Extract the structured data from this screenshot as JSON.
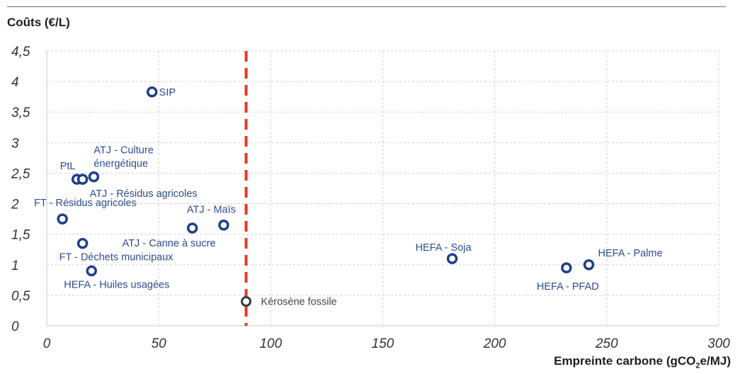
{
  "chart_data": {
    "type": "scatter",
    "ylabel": "Coûts (€/L)",
    "xlabel_prefix": "Empreinte carbone (gCO",
    "xlabel_sub": "2",
    "xlabel_suffix": "e/MJ)",
    "xlim": [
      0,
      300
    ],
    "ylim": [
      0,
      4.5
    ],
    "x_ticks": [
      "0",
      "50",
      "100",
      "150",
      "200",
      "250",
      "300"
    ],
    "x_tick_values": [
      0,
      50,
      100,
      150,
      200,
      250,
      300
    ],
    "y_ticks": [
      "0",
      "0,5",
      "1",
      "1,5",
      "2",
      "2,5",
      "3",
      "3,5",
      "4",
      "4,5"
    ],
    "y_tick_values": [
      0,
      0.5,
      1,
      1.5,
      2,
      2.5,
      3,
      3.5,
      4,
      4.5
    ],
    "grid": true,
    "points": [
      {
        "label": "SIP",
        "x": 47,
        "y": 3.83
      },
      {
        "label": "PtL",
        "x": 13.5,
        "y": 2.4
      },
      {
        "label": "",
        "x": 16,
        "y": 2.4
      },
      {
        "label": "ATJ - Culture énergétique",
        "x": 21,
        "y": 2.44
      },
      {
        "label": "ATJ - Résidus agricoles",
        "x": 16,
        "y": 2.4
      },
      {
        "label": "FT - Résidus agricoles",
        "x": 7,
        "y": 1.75
      },
      {
        "label": "ATJ - Maïs",
        "x": 79,
        "y": 1.65
      },
      {
        "label": "ATJ - Canne à sucre",
        "x": 65,
        "y": 1.6
      },
      {
        "label": "FT - Déchets municipaux",
        "x": 16,
        "y": 1.35
      },
      {
        "label": "HEFA - Huiles usagées",
        "x": 20,
        "y": 0.9
      },
      {
        "label": "HEFA - Soja",
        "x": 181,
        "y": 1.1
      },
      {
        "label": "HEFA - Palme",
        "x": 242,
        "y": 1.0
      },
      {
        "label": "HEFA - PFAD",
        "x": 232,
        "y": 0.95
      }
    ],
    "reference_point": {
      "label": "Kérosène fossile",
      "x": 89,
      "y": 0.4
    },
    "reference_line_x": 89,
    "colors": {
      "point": "#1f3f8c",
      "label": "#2d4d8e",
      "reference_point": "#3a3a3a",
      "reference_line": "#e8381e",
      "grid": "#cfcfcf"
    }
  }
}
